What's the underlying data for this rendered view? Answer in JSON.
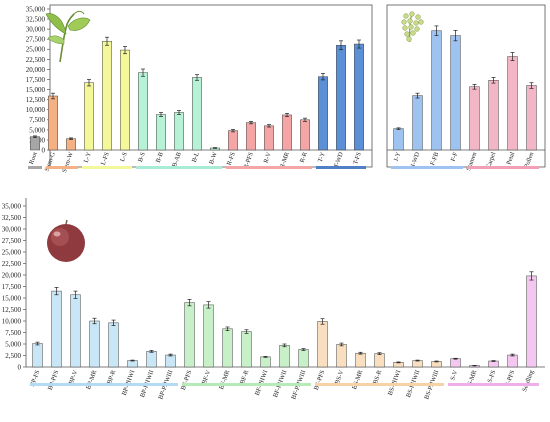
{
  "chart_data": [
    {
      "type": "bar",
      "panel": "vegetative",
      "ylim": [
        0,
        35000
      ],
      "yticks": [
        "0",
        "2,500",
        "5,000",
        "7,500",
        "10,000",
        "12,500",
        "15,000",
        "17,500",
        "20,000",
        "22,500",
        "25,000",
        "27,500",
        "30,000",
        "32,500",
        "35,000"
      ],
      "categories": [
        "Root",
        "Stem-G",
        "Stem-W",
        "L-Y",
        "L-FS",
        "L-S",
        "B-S",
        "B-B",
        "B-AB",
        "B-L",
        "B-W",
        "R-FS",
        "R-PFS",
        "R-V",
        "R-MR",
        "R-R",
        "T-Y",
        "T-WD",
        "T-FS"
      ],
      "values": [
        3300,
        13400,
        2800,
        16700,
        27000,
        24800,
        19200,
        8800,
        9300,
        18000,
        500,
        4800,
        6800,
        6000,
        8700,
        7500,
        18200,
        26000,
        26300
      ],
      "errors": [
        200,
        700,
        200,
        800,
        1000,
        900,
        900,
        500,
        500,
        700,
        100,
        300,
        300,
        300,
        400,
        400,
        800,
        1100,
        1000
      ],
      "colors": [
        "#a6a6a6",
        "#f4b183",
        "#f4b183",
        "#f4f79a",
        "#f4f79a",
        "#f4f79a",
        "#b8f2d6",
        "#b8f2d6",
        "#b8f2d6",
        "#b8f2d6",
        "#b8f2d6",
        "#f4a6a6",
        "#f4a6a6",
        "#f4a6a6",
        "#f4a6a6",
        "#f4a6a6",
        "#5b8fd6",
        "#5b8fd6",
        "#5b8fd6"
      ],
      "groups": [
        {
          "from": 0,
          "to": 0,
          "color": "#a6a6a6"
        },
        {
          "from": 1,
          "to": 2,
          "color": "#f4b183"
        },
        {
          "from": 3,
          "to": 5,
          "color": "#f4f79a"
        },
        {
          "from": 6,
          "to": 10,
          "color": "#a8ecd6"
        },
        {
          "from": 11,
          "to": 15,
          "color": "#f4a6a6"
        },
        {
          "from": 16,
          "to": 18,
          "color": "#4f7fc4"
        }
      ],
      "picture": "grapevine-shoot"
    },
    {
      "type": "bar",
      "panel": "inflorescence",
      "ylim": [
        0,
        35000
      ],
      "categories": [
        "I-Y",
        "I-WD",
        "F-FB",
        "F-F",
        "Stamen",
        "Carpel",
        "Petal",
        "Pollen"
      ],
      "values": [
        5300,
        13500,
        29600,
        28400,
        15700,
        17300,
        23200,
        16000
      ],
      "errors": [
        200,
        600,
        1200,
        1300,
        600,
        700,
        1000,
        700
      ],
      "colors": [
        "#9ec3f0",
        "#9ec3f0",
        "#9ec3f0",
        "#9ec3f0",
        "#f2b6c6",
        "#f2b6c6",
        "#f2b6c6",
        "#f2b6c6"
      ],
      "groups": [
        {
          "from": 0,
          "to": 3,
          "color": "#9ec3f0"
        },
        {
          "from": 4,
          "to": 7,
          "color": "#f2a0b6"
        }
      ],
      "picture": "grape-inflorescence"
    },
    {
      "type": "bar",
      "panel": "berry-and-seed",
      "ylim": [
        0,
        35000
      ],
      "yticks": [
        "0",
        "2,500",
        "5,000",
        "7,500",
        "10,000",
        "12,500",
        "15,000",
        "17,500",
        "20,000",
        "22,500",
        "25,000",
        "27,500",
        "30,000",
        "32,500",
        "35,000"
      ],
      "categories": [
        "BP-FS",
        "BP-PFS",
        "BP-V",
        "BP-MR",
        "BP-R",
        "BP-PHWI",
        "BP-PHWII",
        "BP-PHWIII",
        "BF-PFS",
        "BF-V",
        "BF-MR",
        "BF-R",
        "BF-PHWI",
        "BF-PHWII",
        "BF-PHWIII",
        "BS-PFS",
        "BS-V",
        "BS-MR",
        "BS-R",
        "BS-PHWI",
        "BS-PHWII",
        "BS-PHWIII",
        "S-V",
        "S-MR",
        "S-FS",
        "S-PFS",
        "Seedling"
      ],
      "values": [
        5100,
        16500,
        15700,
        10000,
        9600,
        1400,
        3400,
        2600,
        14000,
        13500,
        8300,
        7700,
        2200,
        4700,
        3800,
        9900,
        4900,
        3000,
        2900,
        1000,
        1400,
        1200,
        1800,
        300,
        1300,
        2600,
        19800
      ],
      "errors": [
        300,
        800,
        800,
        600,
        600,
        100,
        200,
        200,
        700,
        700,
        400,
        400,
        100,
        300,
        200,
        600,
        300,
        200,
        200,
        100,
        100,
        100,
        100,
        50,
        100,
        200,
        900
      ],
      "colors": [
        "#c9e6f7",
        "#c9e6f7",
        "#c9e6f7",
        "#c9e6f7",
        "#c9e6f7",
        "#c9e6f7",
        "#c9e6f7",
        "#c9e6f7",
        "#c8f0c8",
        "#c8f0c8",
        "#c8f0c8",
        "#c8f0c8",
        "#c8f0c8",
        "#c8f0c8",
        "#c8f0c8",
        "#f9dfbf",
        "#f9dfbf",
        "#f9dfbf",
        "#f9dfbf",
        "#f9dfbf",
        "#f9dfbf",
        "#f9dfbf",
        "#f3c7f0",
        "#f3c7f0",
        "#f3c7f0",
        "#f3c7f0",
        "#f3c7f0"
      ],
      "groups": [
        {
          "from": 0,
          "to": 7,
          "color": "#b3dcf2"
        },
        {
          "from": 8,
          "to": 14,
          "color": "#b6eab6"
        },
        {
          "from": 15,
          "to": 21,
          "color": "#f7d2a6"
        },
        {
          "from": 22,
          "to": 26,
          "color": "#efb0ea"
        }
      ],
      "picture": "grape-berry"
    }
  ]
}
